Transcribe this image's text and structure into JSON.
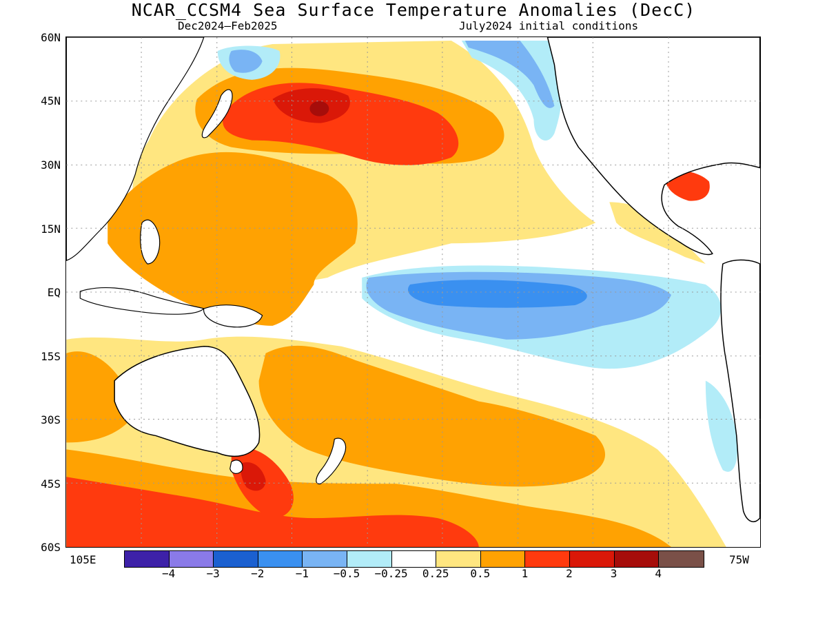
{
  "title": "NCAR_CCSM4 Sea Surface Temperature Anomalies (DecC)",
  "subtitle_left": "Dec2024–Feb2025",
  "subtitle_right": "July2024 initial conditions",
  "lat_labels": [
    "60N",
    "45N",
    "30N",
    "15N",
    "EQ",
    "15S",
    "30S",
    "45S",
    "60S"
  ],
  "lon_left": "105E",
  "lon_right": "75W",
  "colorbar": {
    "colors": [
      "#3d21a8",
      "#8a7ae8",
      "#1b60d0",
      "#3a90f0",
      "#79b4f4",
      "#b2ecf8",
      "#ffffff",
      "#ffe680",
      "#ffa202",
      "#ff3a0e",
      "#da1808",
      "#a60d0a",
      "#7a5048"
    ],
    "labels": [
      "−4",
      "−3",
      "−2",
      "−1",
      "−0.5",
      "−0.25",
      "0.25",
      "0.5",
      "1",
      "2",
      "3",
      "4"
    ]
  },
  "colors": {
    "land": "#ffffff",
    "coast": "#000000",
    "grid": "#999999"
  }
}
